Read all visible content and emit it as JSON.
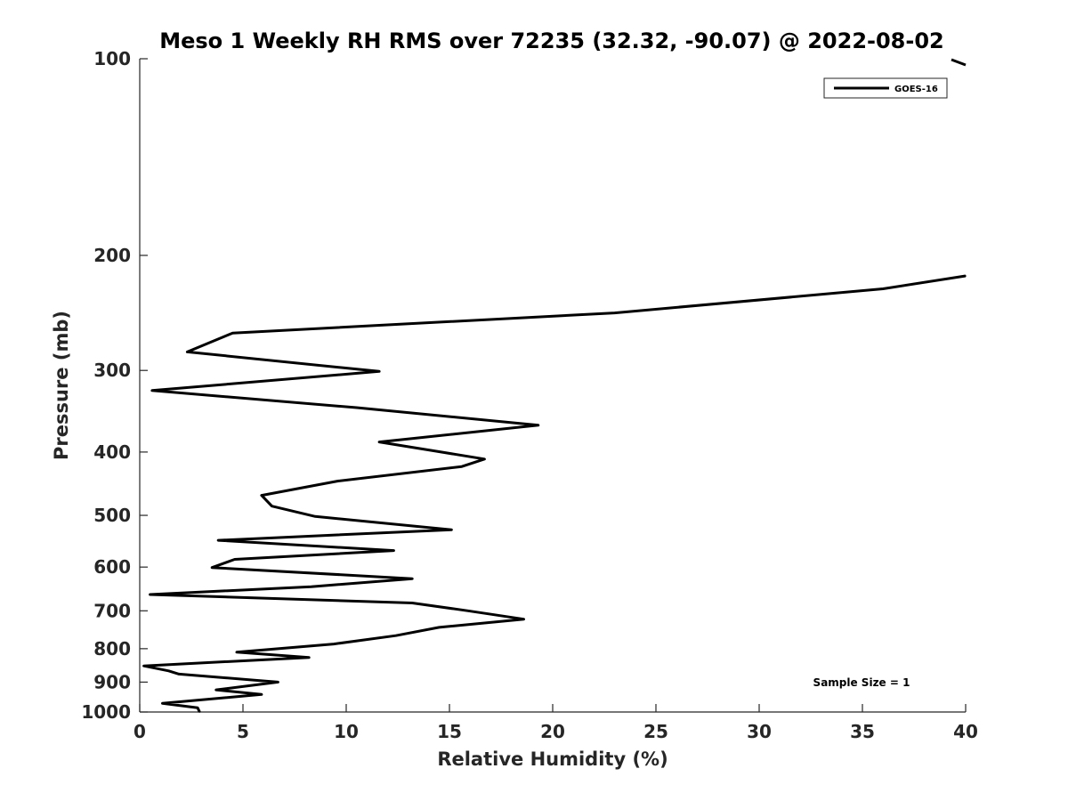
{
  "chart_data": {
    "type": "line",
    "title": "Meso 1 Weekly RH RMS over 72235 (32.32, -90.07) @ 2022-08-02",
    "xlabel": "Relative Humidity (%)",
    "ylabel": "Pressure (mb)",
    "xlim": [
      0,
      40
    ],
    "ylim": [
      100,
      1000
    ],
    "y_scale": "log",
    "y_reversed": true,
    "xticks": [
      0,
      5,
      10,
      15,
      20,
      25,
      30,
      35,
      40
    ],
    "yticks": [
      100,
      200,
      300,
      400,
      500,
      600,
      700,
      800,
      900,
      1000
    ],
    "grid": false,
    "legend": {
      "location": "top-right",
      "entries": [
        "GOES-16"
      ]
    },
    "annotation": "Sample Size = 1",
    "series": [
      {
        "name": "GOES-16",
        "color": "#000000",
        "points": [
          [
            2.9,
            1000
          ],
          [
            2.8,
            985
          ],
          [
            1.1,
            970
          ],
          [
            5.9,
            940
          ],
          [
            3.7,
            925
          ],
          [
            6.7,
            900
          ],
          [
            1.9,
            875
          ],
          [
            1.4,
            865
          ],
          [
            0.2,
            850
          ],
          [
            8.2,
            825
          ],
          [
            4.7,
            810
          ],
          [
            9.4,
            787
          ],
          [
            12.4,
            764
          ],
          [
            14.5,
            742
          ],
          [
            18.6,
            721
          ],
          [
            15.9,
            700
          ],
          [
            13.2,
            681
          ],
          [
            0.5,
            661
          ],
          [
            8.3,
            643
          ],
          [
            13.2,
            625
          ],
          [
            3.5,
            601
          ],
          [
            4.6,
            584
          ],
          [
            12.3,
            566
          ],
          [
            3.8,
            546
          ],
          [
            15.1,
            526
          ],
          [
            8.5,
            502
          ],
          [
            6.4,
            484
          ],
          [
            5.9,
            466
          ],
          [
            9.6,
            443
          ],
          [
            15.6,
            421
          ],
          [
            16.7,
            410
          ],
          [
            11.6,
            386
          ],
          [
            19.3,
            364
          ],
          [
            10.5,
            342
          ],
          [
            0.6,
            322
          ],
          [
            11.6,
            301
          ],
          [
            2.3,
            281
          ],
          [
            4.5,
            263
          ],
          [
            23.0,
            245
          ],
          [
            36.0,
            225
          ],
          [
            40.0,
            215
          ]
        ]
      }
    ]
  }
}
